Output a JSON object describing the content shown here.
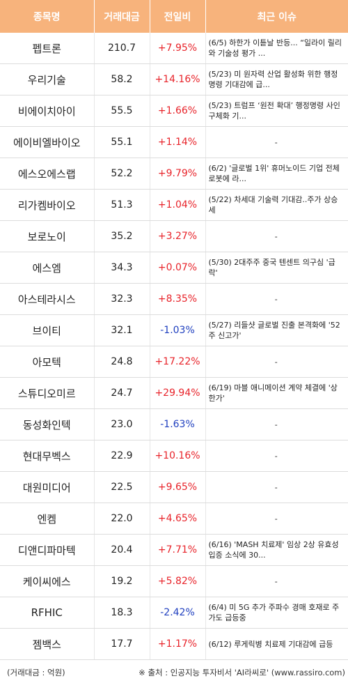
{
  "headers": [
    "종목명",
    "거래대금",
    "전일비",
    "최근 이슈"
  ],
  "rows": [
    {
      "name": "펩트론",
      "volume": "210.7",
      "change": "+7.95%",
      "dir": "up",
      "issue": "(6/5) 하한가 이튿날 반등... “일라이 릴리와 기술성 평가 ..."
    },
    {
      "name": "우리기술",
      "volume": "58.2",
      "change": "+14.16%",
      "dir": "up",
      "issue": "(5/23) 미 원자력 산업 활성화 위한 행정명령 기대감에 급..."
    },
    {
      "name": "비에이치아이",
      "volume": "55.5",
      "change": "+1.66%",
      "dir": "up",
      "issue": "(5/23) 트럼프 ‘원전 확대’ 행정명령 사인 구체화 기..."
    },
    {
      "name": "에이비엘바이오",
      "volume": "55.1",
      "change": "+1.14%",
      "dir": "up",
      "issue": "-"
    },
    {
      "name": "에스오에스랩",
      "volume": "52.2",
      "change": "+9.79%",
      "dir": "up",
      "issue": "(6/2) '글로벌 1위' 휴머노이드 기업 전체 로봇에 라..."
    },
    {
      "name": "리가켐바이오",
      "volume": "51.3",
      "change": "+1.04%",
      "dir": "up",
      "issue": "(5/22) 차세대 기술력 기대감..주가 상승세"
    },
    {
      "name": "보로노이",
      "volume": "35.2",
      "change": "+3.27%",
      "dir": "up",
      "issue": "-"
    },
    {
      "name": "에스엠",
      "volume": "34.3",
      "change": "+0.07%",
      "dir": "up",
      "issue": "(5/30) 2대주주 중국 텐센트 의구심 '급락'"
    },
    {
      "name": "아스테라시스",
      "volume": "32.3",
      "change": "+8.35%",
      "dir": "up",
      "issue": "-"
    },
    {
      "name": "브이티",
      "volume": "32.1",
      "change": "-1.03%",
      "dir": "down",
      "issue": "(5/27) 리들샷 글로벌 진출 본격화에 '52주 신고가'"
    },
    {
      "name": "아모텍",
      "volume": "24.8",
      "change": "+17.22%",
      "dir": "up",
      "issue": "-"
    },
    {
      "name": "스튜디오미르",
      "volume": "24.7",
      "change": "+29.94%",
      "dir": "up",
      "issue": "(6/19) 마블 애니메이션 계약 체결에 '상한가'"
    },
    {
      "name": "동성화인텍",
      "volume": "23.0",
      "change": "-1.63%",
      "dir": "down",
      "issue": "-"
    },
    {
      "name": "현대무벡스",
      "volume": "22.9",
      "change": "+10.16%",
      "dir": "up",
      "issue": "-"
    },
    {
      "name": "대원미디어",
      "volume": "22.5",
      "change": "+9.65%",
      "dir": "up",
      "issue": "-"
    },
    {
      "name": "엔켐",
      "volume": "22.0",
      "change": "+4.65%",
      "dir": "up",
      "issue": "-"
    },
    {
      "name": "디앤디파마텍",
      "volume": "20.4",
      "change": "+7.71%",
      "dir": "up",
      "issue": "(6/16) 'MASH 치료제' 임상 2상 유효성 입증 소식에 30..."
    },
    {
      "name": "케이씨에스",
      "volume": "19.2",
      "change": "+5.82%",
      "dir": "up",
      "issue": "-"
    },
    {
      "name": "RFHIC",
      "volume": "18.3",
      "change": "-2.42%",
      "dir": "down",
      "issue": "(6/4) 미 5G 추가 주파수 경매 호재로 주가도 급등중"
    },
    {
      "name": "젬백스",
      "volume": "17.7",
      "change": "+1.17%",
      "dir": "up",
      "issue": "(6/12) 루게릭병 치료제 기대감에 급등"
    }
  ],
  "footer": {
    "unit_note": "(거래대금 : 억원)",
    "source_note": "※ 출처 : 인공지능 투자비서 'AI라씨로' (www.rassiro.com)"
  },
  "colors": {
    "header_bg": "#f7b37c",
    "up": "#e8232a",
    "down": "#1f3fbf"
  }
}
